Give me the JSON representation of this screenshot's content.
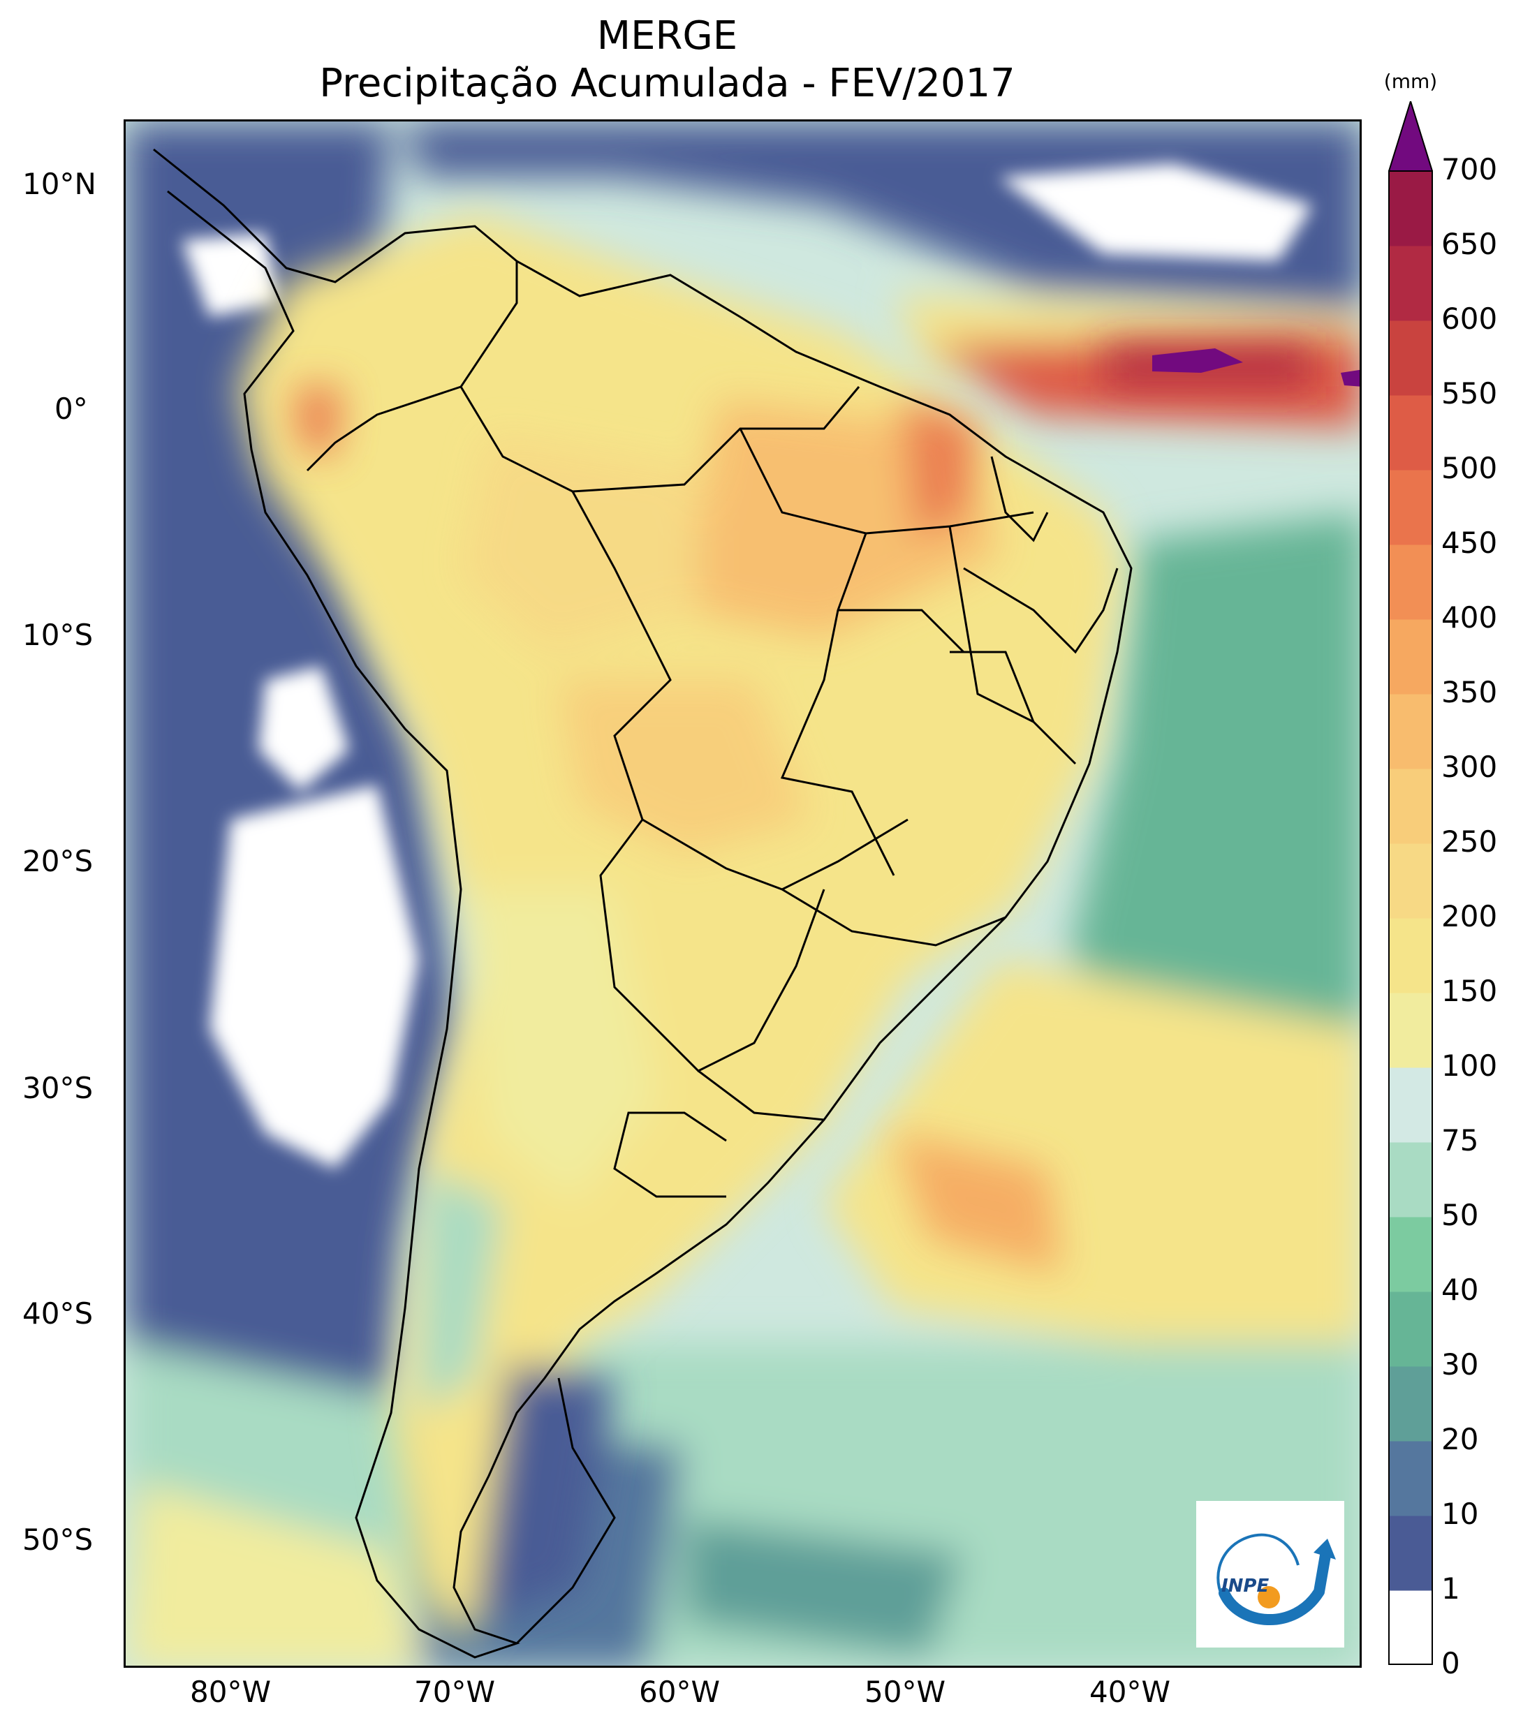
{
  "title": {
    "line1": "MERGE",
    "line2": "Precipitação Acumulada - FEV/2017"
  },
  "map": {
    "region": "South America",
    "lon_range": [
      -85,
      -30
    ],
    "lat_range": [
      -56,
      13
    ],
    "lat_labels": [
      "10°N",
      "0°",
      "10°S",
      "20°S",
      "30°S",
      "40°S",
      "50°S"
    ],
    "lon_labels": [
      "80°W",
      "70°W",
      "60°W",
      "50°W",
      "40°W"
    ],
    "field_colors": {
      "dry_ocean_west": "#4a5b95",
      "moist_band": "#9fd6c4",
      "continent_base": "#f2de8a",
      "wet_core": "#f4a766",
      "very_wet": "#d4473f",
      "extreme": "#720a7f"
    }
  },
  "colorbar": {
    "unit": "(mm)",
    "levels": [
      "0",
      "1",
      "10",
      "20",
      "30",
      "40",
      "50",
      "75",
      "100",
      "150",
      "200",
      "250",
      "300",
      "350",
      "400",
      "450",
      "500",
      "550",
      "600",
      "650",
      "700"
    ],
    "colors": [
      "#ffffff",
      "#4a5b95",
      "#55779e",
      "#5f9f98",
      "#66b596",
      "#7ccba0",
      "#a9dbc3",
      "#d3e9e4",
      "#f1ec9e",
      "#f5e48a",
      "#f7d985",
      "#f8cd7a",
      "#f8bc6e",
      "#f6a860",
      "#f28f55",
      "#ea744c",
      "#de5c46",
      "#c9433f",
      "#b12a43",
      "#9a1a45"
    ],
    "extend_color": "#720a7f"
  },
  "logo": {
    "text": "INPE",
    "arc_color": "#1a74b8",
    "dot_color": "#f29b1f"
  }
}
